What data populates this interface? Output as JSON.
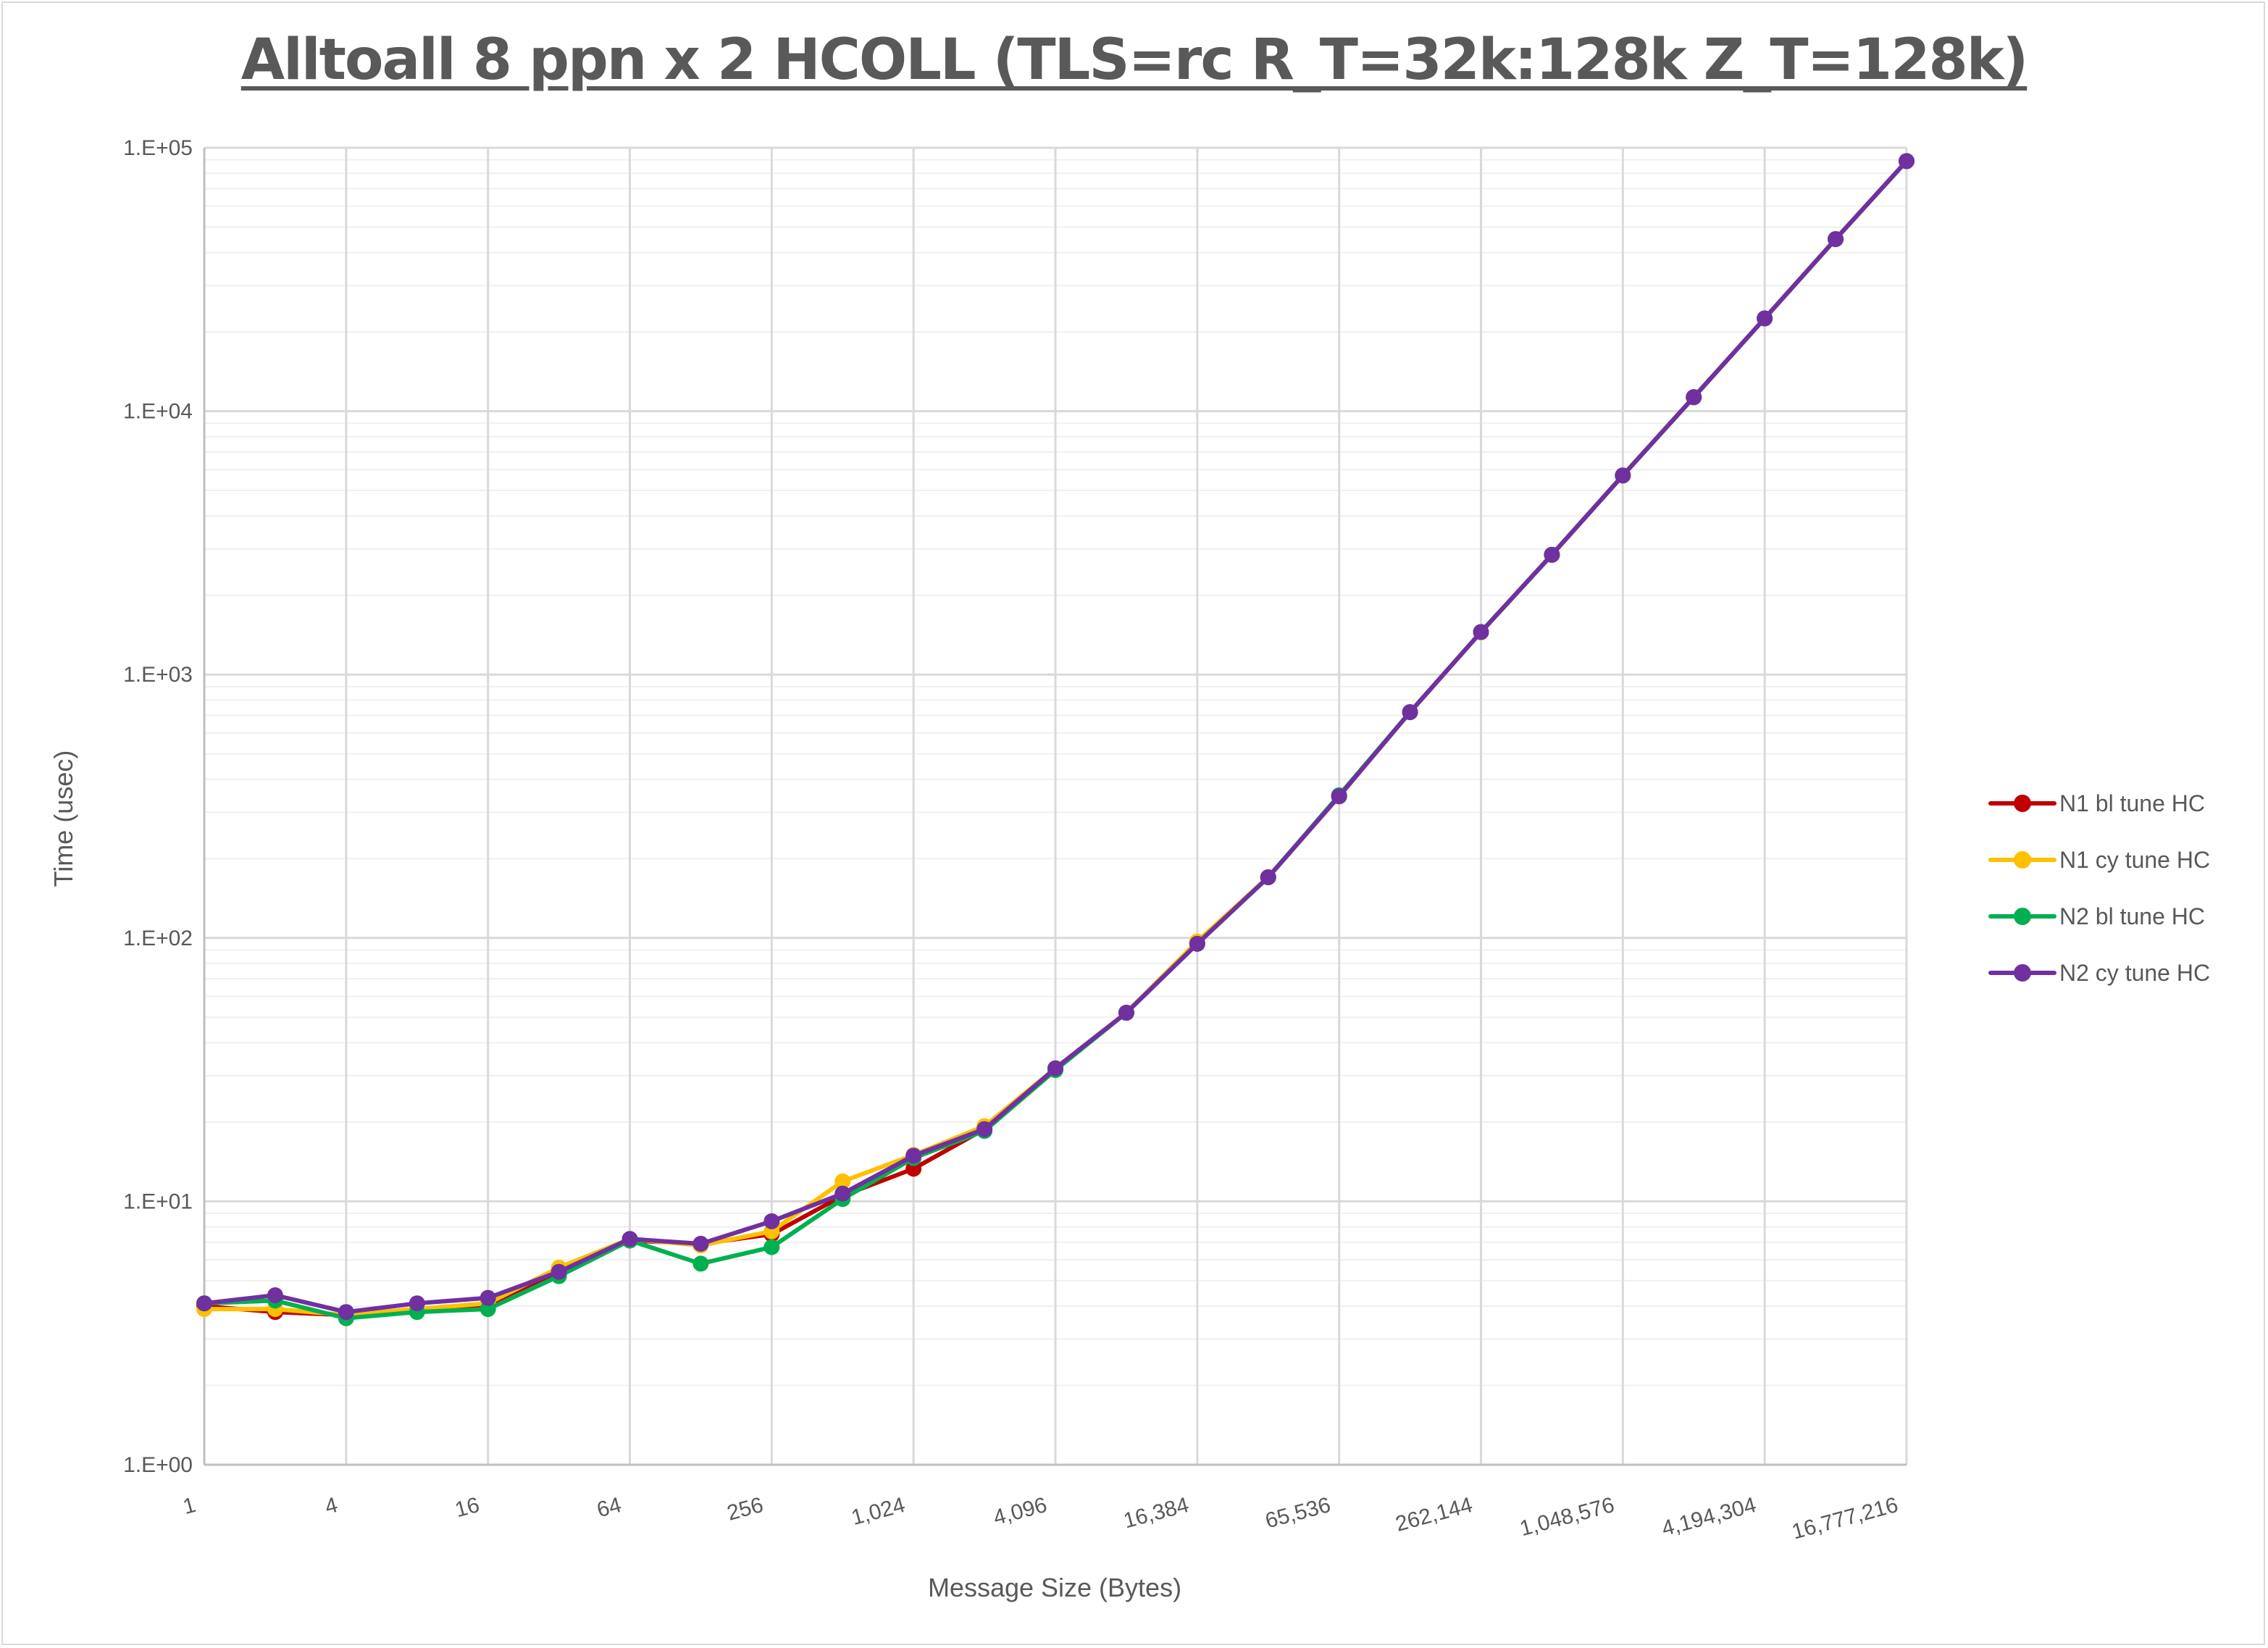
{
  "chart_data": {
    "type": "line",
    "title": "Alltoall 8 ppn x 2 HCOLL (TLS=rc R_T=32k:128k Z_T=128k)",
    "xlabel": "Message Size (Bytes)",
    "ylabel": "Time (usec)",
    "xscale": "log2",
    "yscale": "log10",
    "ylim": [
      1,
      100000
    ],
    "grid": true,
    "legend_position": "right",
    "x": [
      1,
      2,
      4,
      8,
      16,
      32,
      64,
      128,
      256,
      512,
      1024,
      2048,
      4096,
      8192,
      16384,
      32768,
      65536,
      131072,
      262144,
      524288,
      1048576,
      2097152,
      4194304,
      8388608,
      16777216
    ],
    "x_tick_labels": [
      "1",
      "4",
      "16",
      "64",
      "256",
      "1,024",
      "4,096",
      "16,384",
      "65,536",
      "262,144",
      "1,048,576",
      "4,194,304",
      "16,777,216"
    ],
    "y_tick_labels": [
      "1.E+00",
      "1.E+01",
      "1.E+02",
      "1.E+03",
      "1.E+04",
      "1.E+05"
    ],
    "series": [
      {
        "name": "N1 bl tune HC",
        "color": "#c00000",
        "values": [
          4.0,
          3.8,
          3.7,
          3.9,
          4.0,
          5.3,
          7.1,
          6.9,
          7.5,
          10.5,
          13.3,
          18.8,
          32,
          52,
          96,
          170,
          345,
          720,
          1450,
          2850,
          5700,
          11300,
          22500,
          45000,
          89000
        ]
      },
      {
        "name": "N1 cy tune HC",
        "color": "#ffc000",
        "values": [
          3.9,
          3.9,
          3.7,
          3.9,
          4.1,
          5.6,
          7.2,
          6.8,
          7.7,
          11.9,
          15.0,
          19.3,
          32,
          52,
          97,
          170,
          345,
          720,
          1450,
          2850,
          5700,
          11300,
          22500,
          45000,
          89000
        ]
      },
      {
        "name": "N2 bl tune HC",
        "color": "#00b050",
        "values": [
          4.1,
          4.2,
          3.6,
          3.8,
          3.9,
          5.2,
          7.1,
          5.8,
          6.7,
          10.2,
          14.6,
          18.5,
          31.5,
          52,
          95,
          170,
          348,
          720,
          1450,
          2850,
          5700,
          11300,
          22500,
          45000,
          89000
        ]
      },
      {
        "name": "N2 cy tune HC",
        "color": "#7030a0",
        "values": [
          4.1,
          4.4,
          3.8,
          4.1,
          4.3,
          5.4,
          7.2,
          6.9,
          8.4,
          10.7,
          14.9,
          18.8,
          32,
          52,
          95,
          170,
          345,
          720,
          1450,
          2850,
          5700,
          11300,
          22500,
          45000,
          89000
        ]
      }
    ]
  }
}
